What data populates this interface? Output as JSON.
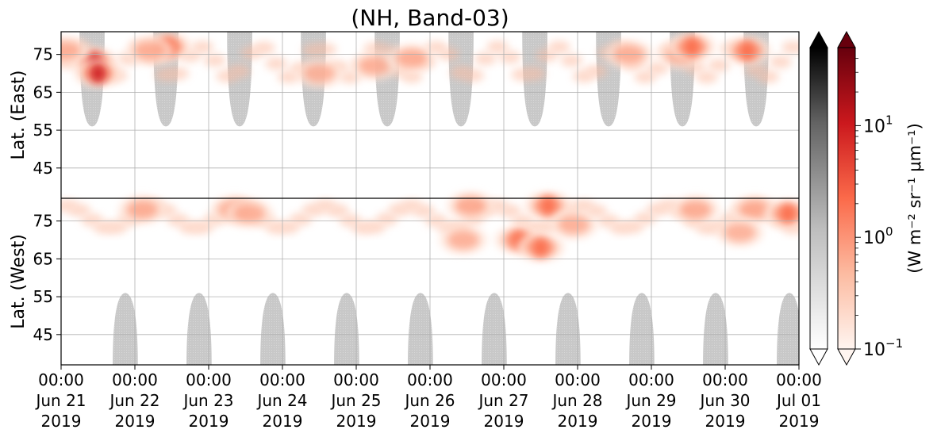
{
  "chart_data": {
    "type": "heatmap",
    "title": "(NH, Band-03)",
    "x_tick_labels": [
      {
        "time": "00:00",
        "date": "Jun 21",
        "year": "2019"
      },
      {
        "time": "00:00",
        "date": "Jun 22",
        "year": "2019"
      },
      {
        "time": "00:00",
        "date": "Jun 23",
        "year": "2019"
      },
      {
        "time": "00:00",
        "date": "Jun 24",
        "year": "2019"
      },
      {
        "time": "00:00",
        "date": "Jun 25",
        "year": "2019"
      },
      {
        "time": "00:00",
        "date": "Jun 26",
        "year": "2019"
      },
      {
        "time": "00:00",
        "date": "Jun 27",
        "year": "2019"
      },
      {
        "time": "00:00",
        "date": "Jun 28",
        "year": "2019"
      },
      {
        "time": "00:00",
        "date": "Jun 29",
        "year": "2019"
      },
      {
        "time": "00:00",
        "date": "Jun 30",
        "year": "2019"
      },
      {
        "time": "00:00",
        "date": "Jul 01",
        "year": "2019"
      }
    ],
    "x_range_days": [
      0,
      10
    ],
    "y_panels": [
      {
        "label": "Lat. (East)",
        "ticks": [
          "45",
          "55",
          "65",
          "75"
        ],
        "range": [
          37,
          81
        ]
      },
      {
        "label": "Lat. (West)",
        "ticks": [
          "75",
          "65",
          "55",
          "45"
        ],
        "range": [
          81,
          37
        ]
      }
    ],
    "grid": true,
    "colorbars": [
      {
        "cmap": "Greys",
        "scale": "log"
      },
      {
        "cmap": "Reds",
        "scale": "log",
        "label": "(W m⁻² sr⁻¹ μm⁻¹)",
        "ticks": [
          {
            "base": "10",
            "exp": "1"
          },
          {
            "base": "10",
            "exp": "0"
          },
          {
            "base": "10",
            "exp": "−1"
          }
        ],
        "range": [
          0.1,
          50
        ]
      }
    ],
    "colors": {
      "reds_light": "#fee5d9",
      "reds_mid": "#fb6a4a",
      "reds_dark": "#a50f15",
      "grey_night": "#c8c8c8"
    },
    "night_lobes": {
      "east_start_days": [
        0.25,
        1.25,
        2.25,
        3.25,
        4.25,
        5.25,
        6.25,
        7.25,
        8.25,
        9.25
      ],
      "west_start_days": [
        0.7,
        1.7,
        2.7,
        3.7,
        4.7,
        5.7,
        6.7,
        7.7,
        8.7,
        9.7
      ],
      "duration_days": 0.34,
      "lat_limit": 56
    },
    "emission_events": [
      {
        "day": 0.45,
        "lat": 73,
        "panel": "east",
        "intensity": 1.0
      },
      {
        "day": 0.5,
        "lat": 70,
        "panel": "east",
        "intensity": 0.9
      },
      {
        "day": 0.05,
        "lat": 76,
        "panel": "east",
        "intensity": 0.5
      },
      {
        "day": 1.45,
        "lat": 77,
        "panel": "east",
        "intensity": 0.85
      },
      {
        "day": 1.2,
        "lat": 76,
        "panel": "east",
        "intensity": 0.5
      },
      {
        "day": 1.1,
        "lat": 78,
        "panel": "west",
        "intensity": 0.5
      },
      {
        "day": 2.35,
        "lat": 78,
        "panel": "west",
        "intensity": 0.55
      },
      {
        "day": 2.55,
        "lat": 77,
        "panel": "west",
        "intensity": 0.45
      },
      {
        "day": 3.5,
        "lat": 70,
        "panel": "east",
        "intensity": 0.4
      },
      {
        "day": 4.25,
        "lat": 72,
        "panel": "east",
        "intensity": 0.45
      },
      {
        "day": 4.75,
        "lat": 74,
        "panel": "east",
        "intensity": 0.55
      },
      {
        "day": 5.55,
        "lat": 79,
        "panel": "west",
        "intensity": 0.6
      },
      {
        "day": 5.45,
        "lat": 70,
        "panel": "west",
        "intensity": 0.45
      },
      {
        "day": 6.2,
        "lat": 70,
        "panel": "west",
        "intensity": 0.65
      },
      {
        "day": 6.5,
        "lat": 68,
        "panel": "west",
        "intensity": 0.7
      },
      {
        "day": 6.6,
        "lat": 79,
        "panel": "west",
        "intensity": 0.7
      },
      {
        "day": 6.95,
        "lat": 74,
        "panel": "west",
        "intensity": 0.45
      },
      {
        "day": 7.7,
        "lat": 75,
        "panel": "east",
        "intensity": 0.5
      },
      {
        "day": 8.4,
        "lat": 75,
        "panel": "east",
        "intensity": 0.55
      },
      {
        "day": 8.6,
        "lat": 78,
        "panel": "west",
        "intensity": 0.55
      },
      {
        "day": 8.55,
        "lat": 77,
        "panel": "east",
        "intensity": 0.75
      },
      {
        "day": 9.3,
        "lat": 76,
        "panel": "east",
        "intensity": 0.75
      },
      {
        "day": 9.4,
        "lat": 78,
        "panel": "west",
        "intensity": 0.6
      },
      {
        "day": 9.85,
        "lat": 77,
        "panel": "west",
        "intensity": 0.7
      },
      {
        "day": 9.2,
        "lat": 72,
        "panel": "west",
        "intensity": 0.4
      }
    ]
  }
}
